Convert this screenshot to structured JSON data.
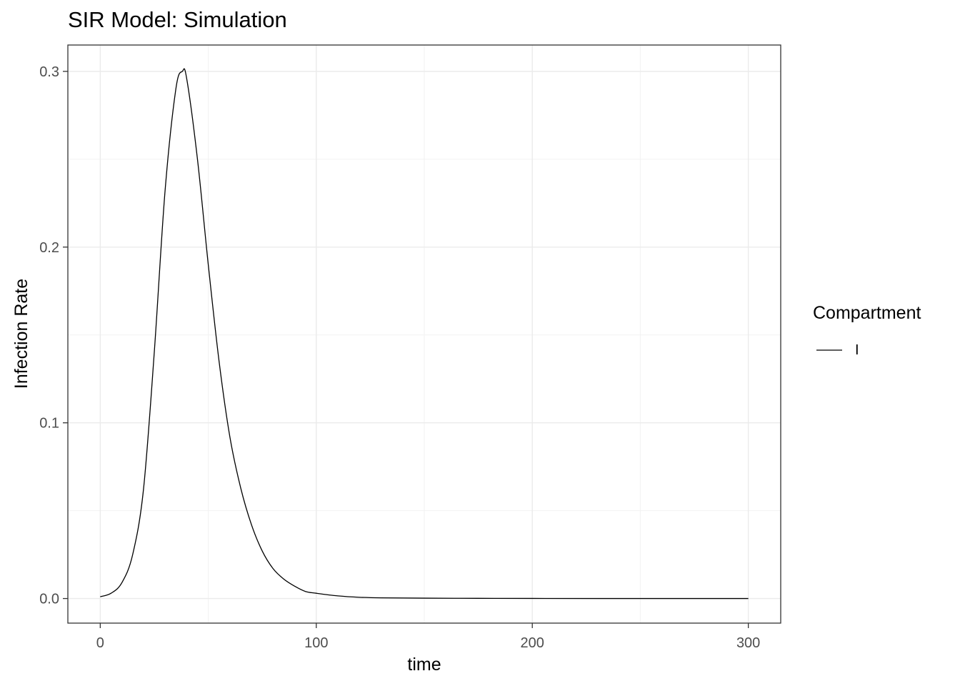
{
  "chart_data": {
    "type": "line",
    "title": "SIR Model: Simulation",
    "xlabel": "time",
    "ylabel": "Infection Rate",
    "xlim": [
      -15,
      315
    ],
    "ylim": [
      -0.014,
      0.315
    ],
    "xticks": [
      0,
      100,
      200,
      300
    ],
    "xtick_labels": [
      "0",
      "100",
      "200",
      "300"
    ],
    "yticks": [
      0.0,
      0.1,
      0.2,
      0.3
    ],
    "ytick_labels": [
      "0.0",
      "0.1",
      "0.2",
      "0.3"
    ],
    "grid": true,
    "legend_position": "right",
    "legend": {
      "title": "Compartment",
      "entries": [
        "I"
      ]
    },
    "series": [
      {
        "name": "I",
        "color": "#000000",
        "x": [
          0,
          5,
          10,
          15,
          20,
          25,
          30,
          35,
          38,
          40,
          45,
          50,
          55,
          60,
          65,
          70,
          75,
          80,
          85,
          90,
          95,
          100,
          110,
          120,
          130,
          150,
          175,
          200,
          250,
          300
        ],
        "y": [
          0.001,
          0.003,
          0.009,
          0.025,
          0.062,
          0.14,
          0.232,
          0.29,
          0.3,
          0.296,
          0.25,
          0.19,
          0.135,
          0.092,
          0.063,
          0.042,
          0.027,
          0.017,
          0.011,
          0.007,
          0.004,
          0.003,
          0.0015,
          0.0007,
          0.0004,
          0.0002,
          0.0001,
          5e-05,
          0.0,
          0.0
        ]
      }
    ]
  }
}
